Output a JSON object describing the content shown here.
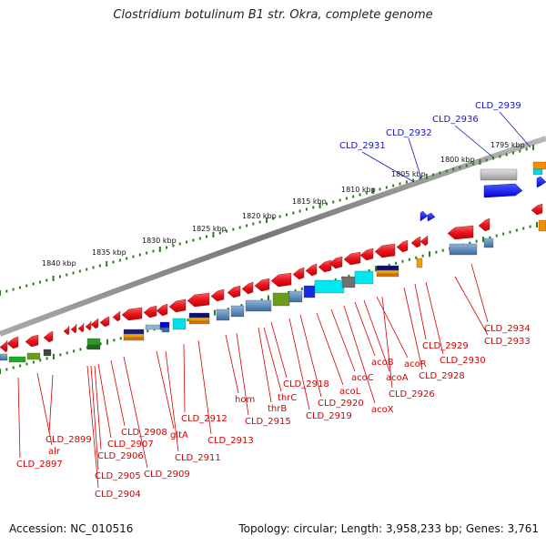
{
  "title": "Clostridium botulinum B1 str. Okra, complete genome",
  "footer": {
    "accession": "Accession: NC_010516",
    "topology": "Topology: circular; Length: 3,958,233 bp; Genes: 3,761"
  },
  "colors": {
    "backbone": "#8a8a8a",
    "tick": "#2e7d1e",
    "forward_gene": "#e8141e",
    "reverse_gene": "#e8141e",
    "forward_label": "#1515c8",
    "reverse_label": "#d40000"
  },
  "ruler": {
    "unit": "kbp",
    "labels": [
      "1795 kbp",
      "1800 kbp",
      "1805 kbp",
      "1810 kbp",
      "1815 kbp",
      "1820 kbp",
      "1825 kbp",
      "1830 kbp",
      "1835 kbp",
      "1840 kbp"
    ]
  },
  "forward_gene_labels": [
    "CLD_2931",
    "CLD_2932",
    "CLD_2936",
    "CLD_2939"
  ],
  "reverse_gene_labels": [
    "CLD_2897",
    "alr",
    "CLD_2899",
    "CLD_2904",
    "CLD_2905",
    "CLD_2906",
    "CLD_2907",
    "CLD_2908",
    "CLD_2909",
    "gltA",
    "CLD_2911",
    "CLD_2912",
    "CLD_2913",
    "hom",
    "CLD_2915",
    "thrB",
    "thrC",
    "CLD_2918",
    "CLD_2919",
    "CLD_2920",
    "acoL",
    "acoC",
    "acoX",
    "acoB",
    "acoA",
    "acoR",
    "CLD_2926",
    "CLD_2928",
    "CLD_2929",
    "CLD_2930",
    "CLD_2933",
    "CLD_2934"
  ]
}
